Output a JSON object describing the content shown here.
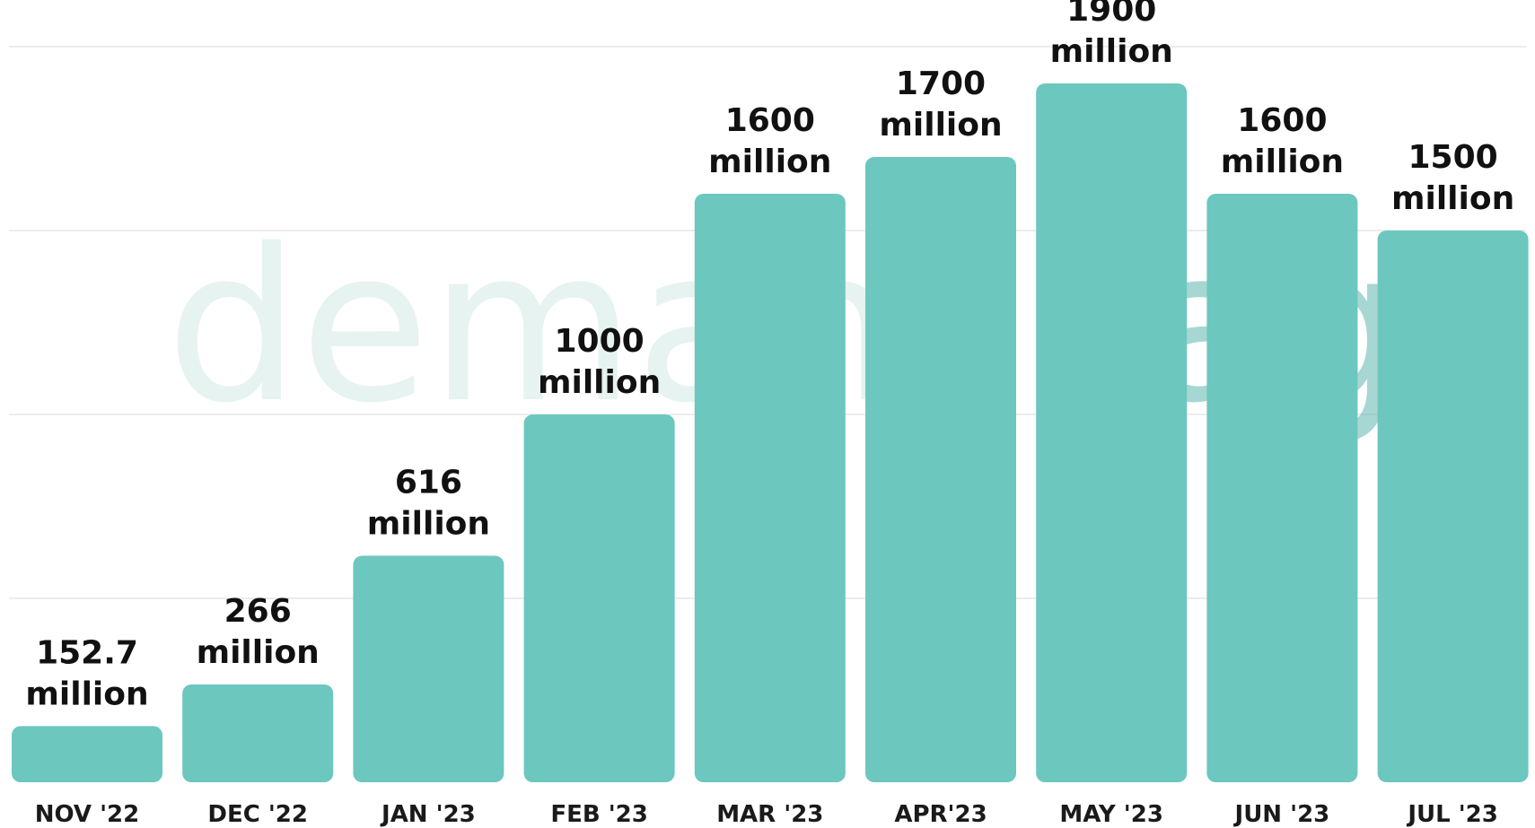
{
  "chart_data": {
    "type": "bar",
    "title": "",
    "xlabel": "",
    "ylabel": "",
    "ylim": [
      0,
      2000
    ],
    "grid": true,
    "categories": [
      "NOV '22",
      "DEC '22",
      "JAN '23",
      "FEB '23",
      "MAR '23",
      "APR'23",
      "MAY '23",
      "JUN '23",
      "JUL '23"
    ],
    "values": [
      152.7,
      266,
      616,
      1000,
      1600,
      1700,
      1900,
      1600,
      1500
    ],
    "value_labels": [
      "152.7",
      "266",
      "616",
      "1000",
      "1600",
      "1700",
      "1900",
      "1600",
      "1500"
    ],
    "unit_label": "million",
    "bar_color": "#6cc7be",
    "watermark": {
      "part1": "demand",
      "part2": "sage",
      "color1": "#e6f3f1",
      "color2": "#5fb7ae"
    }
  }
}
